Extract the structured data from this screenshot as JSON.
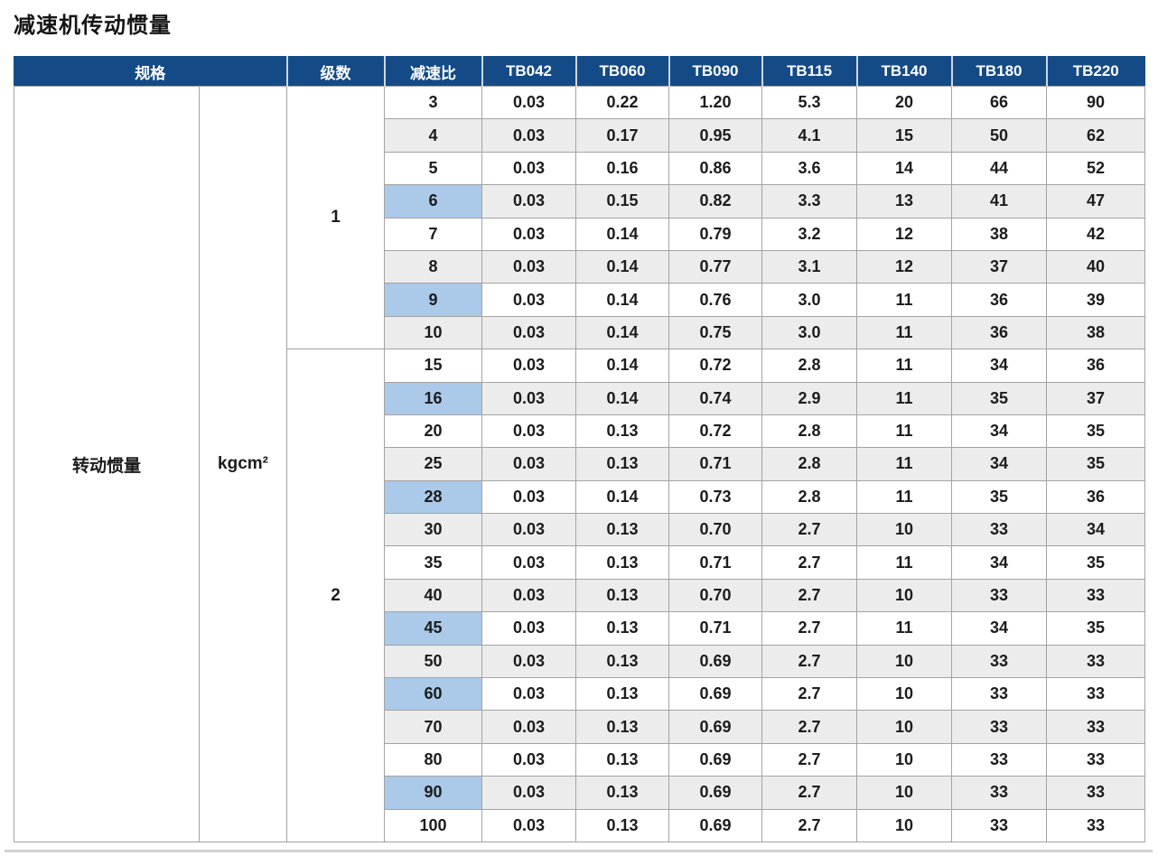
{
  "page": {
    "title": "减速机传动惯量"
  },
  "colors": {
    "header_bg": "#144b86",
    "header_text": "#ffffff",
    "row_bg": "#ffffff",
    "row_alt_bg": "#ececec",
    "highlight_bg": "#abc9e8",
    "grid_line": "#a3a3a3",
    "text": "#1c1c1c"
  },
  "table": {
    "header": {
      "spec": "规格",
      "stages": "级数",
      "ratio": "减速比",
      "models": [
        "TB042",
        "TB060",
        "TB090",
        "TB115",
        "TB140",
        "TB180",
        "TB220"
      ]
    },
    "spec": {
      "label": "转动惯量",
      "unit": "kgcm²"
    },
    "groups": [
      {
        "stage": "1",
        "rows": 8
      },
      {
        "stage": "2",
        "rows": 15
      }
    ],
    "rows": [
      {
        "ratio": "3",
        "highlight": false,
        "values": [
          "0.03",
          "0.22",
          "1.20",
          "5.3",
          "20",
          "66",
          "90"
        ]
      },
      {
        "ratio": "4",
        "highlight": false,
        "values": [
          "0.03",
          "0.17",
          "0.95",
          "4.1",
          "15",
          "50",
          "62"
        ]
      },
      {
        "ratio": "5",
        "highlight": false,
        "values": [
          "0.03",
          "0.16",
          "0.86",
          "3.6",
          "14",
          "44",
          "52"
        ]
      },
      {
        "ratio": "6",
        "highlight": true,
        "values": [
          "0.03",
          "0.15",
          "0.82",
          "3.3",
          "13",
          "41",
          "47"
        ]
      },
      {
        "ratio": "7",
        "highlight": false,
        "values": [
          "0.03",
          "0.14",
          "0.79",
          "3.2",
          "12",
          "38",
          "42"
        ]
      },
      {
        "ratio": "8",
        "highlight": false,
        "values": [
          "0.03",
          "0.14",
          "0.77",
          "3.1",
          "12",
          "37",
          "40"
        ]
      },
      {
        "ratio": "9",
        "highlight": true,
        "values": [
          "0.03",
          "0.14",
          "0.76",
          "3.0",
          "11",
          "36",
          "39"
        ]
      },
      {
        "ratio": "10",
        "highlight": false,
        "values": [
          "0.03",
          "0.14",
          "0.75",
          "3.0",
          "11",
          "36",
          "38"
        ]
      },
      {
        "ratio": "15",
        "highlight": false,
        "values": [
          "0.03",
          "0.14",
          "0.72",
          "2.8",
          "11",
          "34",
          "36"
        ]
      },
      {
        "ratio": "16",
        "highlight": true,
        "values": [
          "0.03",
          "0.14",
          "0.74",
          "2.9",
          "11",
          "35",
          "37"
        ]
      },
      {
        "ratio": "20",
        "highlight": false,
        "values": [
          "0.03",
          "0.13",
          "0.72",
          "2.8",
          "11",
          "34",
          "35"
        ]
      },
      {
        "ratio": "25",
        "highlight": false,
        "values": [
          "0.03",
          "0.13",
          "0.71",
          "2.8",
          "11",
          "34",
          "35"
        ]
      },
      {
        "ratio": "28",
        "highlight": true,
        "values": [
          "0.03",
          "0.14",
          "0.73",
          "2.8",
          "11",
          "35",
          "36"
        ]
      },
      {
        "ratio": "30",
        "highlight": false,
        "values": [
          "0.03",
          "0.13",
          "0.70",
          "2.7",
          "10",
          "33",
          "34"
        ]
      },
      {
        "ratio": "35",
        "highlight": false,
        "values": [
          "0.03",
          "0.13",
          "0.71",
          "2.7",
          "11",
          "34",
          "35"
        ]
      },
      {
        "ratio": "40",
        "highlight": false,
        "values": [
          "0.03",
          "0.13",
          "0.70",
          "2.7",
          "10",
          "33",
          "33"
        ]
      },
      {
        "ratio": "45",
        "highlight": true,
        "values": [
          "0.03",
          "0.13",
          "0.71",
          "2.7",
          "11",
          "34",
          "35"
        ]
      },
      {
        "ratio": "50",
        "highlight": false,
        "values": [
          "0.03",
          "0.13",
          "0.69",
          "2.7",
          "10",
          "33",
          "33"
        ]
      },
      {
        "ratio": "60",
        "highlight": true,
        "values": [
          "0.03",
          "0.13",
          "0.69",
          "2.7",
          "10",
          "33",
          "33"
        ]
      },
      {
        "ratio": "70",
        "highlight": false,
        "values": [
          "0.03",
          "0.13",
          "0.69",
          "2.7",
          "10",
          "33",
          "33"
        ]
      },
      {
        "ratio": "80",
        "highlight": false,
        "values": [
          "0.03",
          "0.13",
          "0.69",
          "2.7",
          "10",
          "33",
          "33"
        ]
      },
      {
        "ratio": "90",
        "highlight": true,
        "values": [
          "0.03",
          "0.13",
          "0.69",
          "2.7",
          "10",
          "33",
          "33"
        ]
      },
      {
        "ratio": "100",
        "highlight": false,
        "values": [
          "0.03",
          "0.13",
          "0.69",
          "2.7",
          "10",
          "33",
          "33"
        ]
      }
    ]
  }
}
